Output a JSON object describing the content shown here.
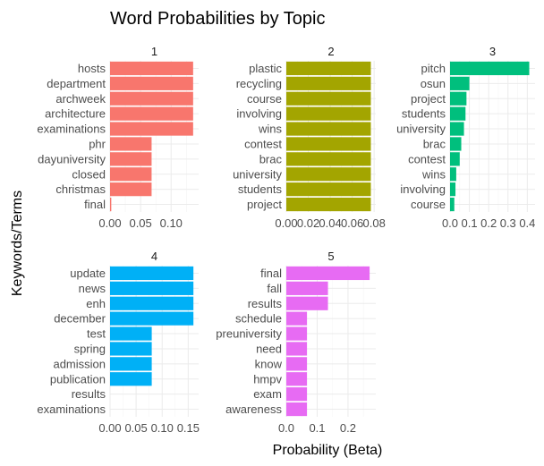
{
  "chart_data": {
    "type": "bar",
    "orientation": "horizontal",
    "title": "Word Probabilities by Topic",
    "xlabel": "Probability (Beta)",
    "ylabel": "Keywords/Terms",
    "panels": [
      {
        "facet": "1",
        "color": "#F8766D",
        "terms": [
          "hosts",
          "department",
          "archweek",
          "architecture",
          "examinations",
          "phr",
          "dayuniversity",
          "closed",
          "christmas",
          "final"
        ],
        "values": [
          0.136,
          0.136,
          0.136,
          0.136,
          0.136,
          0.068,
          0.068,
          0.068,
          0.068,
          0.002
        ],
        "xlim": [
          0,
          0.145
        ],
        "xticks": [
          0,
          0.05,
          0.1
        ],
        "xtick_labels": [
          "0.00",
          "0.05",
          "0.10"
        ]
      },
      {
        "facet": "2",
        "color": "#A3A500",
        "terms": [
          "plastic",
          "recycling",
          "course",
          "involving",
          "wins",
          "contest",
          "brac",
          "university",
          "students",
          "project"
        ],
        "values": [
          0.077,
          0.077,
          0.077,
          0.077,
          0.077,
          0.077,
          0.077,
          0.077,
          0.077,
          0.077
        ],
        "xlim": [
          0,
          0.0815
        ],
        "xticks": [
          0,
          0.02,
          0.04,
          0.06,
          0.08
        ],
        "xtick_labels": [
          "0.00",
          "0.02",
          "0.04",
          "0.06",
          "0.08"
        ]
      },
      {
        "facet": "3",
        "color": "#00BF7D",
        "terms": [
          "pitch",
          "osun",
          "project",
          "students",
          "university",
          "brac",
          "contest",
          "wins",
          "involving",
          "course"
        ],
        "values": [
          0.41,
          0.1,
          0.085,
          0.08,
          0.072,
          0.058,
          0.05,
          0.032,
          0.028,
          0.022
        ],
        "xlim": [
          0,
          0.44
        ],
        "xticks": [
          0,
          0.1,
          0.2,
          0.3,
          0.4
        ],
        "xtick_labels": [
          "0.0",
          "0.1",
          "0.2",
          "0.3",
          "0.4"
        ]
      },
      {
        "facet": "4",
        "color": "#00B0F6",
        "terms": [
          "update",
          "news",
          "enh",
          "december",
          "test",
          "spring",
          "admission",
          "publication",
          "results",
          "examinations"
        ],
        "values": [
          0.16,
          0.16,
          0.16,
          0.16,
          0.08,
          0.08,
          0.08,
          0.08,
          0,
          0
        ],
        "xlim": [
          0,
          0.17
        ],
        "xticks": [
          0,
          0.05,
          0.1,
          0.15
        ],
        "xtick_labels": [
          "0.00",
          "0.05",
          "0.10",
          "0.15"
        ]
      },
      {
        "facet": "5",
        "color": "#E76BF3",
        "terms": [
          "final",
          "fall",
          "results",
          "schedule",
          "preuniversity",
          "need",
          "know",
          "hmpv",
          "exam",
          "awareness"
        ],
        "values": [
          0.27,
          0.135,
          0.135,
          0.067,
          0.067,
          0.067,
          0.067,
          0.067,
          0.067,
          0.067
        ],
        "xlim": [
          0,
          0.29
        ],
        "xticks": [
          0,
          0.1,
          0.2
        ],
        "xtick_labels": [
          "0.0",
          "0.1",
          "0.2"
        ]
      }
    ]
  }
}
